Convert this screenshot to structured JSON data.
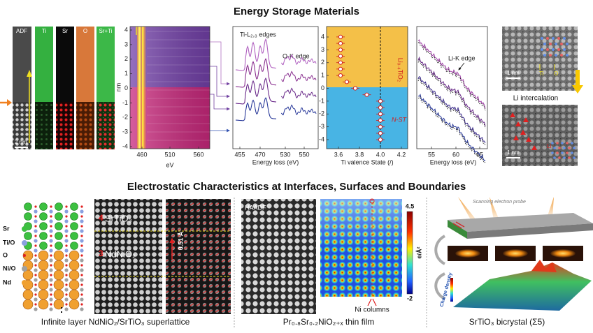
{
  "title": "Energy Storage Materials",
  "panel_a": {
    "labels": [
      "ADF",
      "Ti",
      "Sr",
      "O",
      "Sr+Ti"
    ],
    "scale": "2 nm"
  },
  "panel_b": {
    "y_label": "nm",
    "y_ticks": [
      "4",
      "3",
      "2",
      "1",
      "0",
      "-1",
      "-2",
      "-3",
      "-4"
    ],
    "x_ticks": [
      "460",
      "510",
      "560"
    ],
    "x_label": "eV"
  },
  "panel_c": {
    "labels": [
      "Ti-L₂,₃ edges",
      "O-K edge"
    ],
    "x_ticks": [
      "455",
      "470",
      "530",
      "550"
    ],
    "x_label": "Energy loss (eV)"
  },
  "panel_d": {
    "y_ticks": [
      "4",
      "3",
      "2",
      "1",
      "0",
      "-1",
      "-2",
      "-3",
      "-4"
    ],
    "x_ticks": [
      "3.6",
      "3.8",
      "4.0",
      "4.2"
    ],
    "x_label": "Ti valence State (/)",
    "labels": [
      "Li₀.₄TiO₂",
      "N-ST"
    ]
  },
  "panel_e": {
    "label": "Li-K edge",
    "x_ticks": [
      "55",
      "60",
      "65"
    ],
    "x_label": "Energy loss (eV)"
  },
  "panel_f": {
    "scale_top": "1 nm",
    "atoms": [
      "Ti",
      "O"
    ],
    "arrow_label": "Li intercalation",
    "scale_bottom": "1 nm",
    "li": "Li"
  },
  "subtitle": "Electrostatic Characteristics at Interfaces, Surfaces and Boundaries",
  "superlattice": {
    "legend": [
      "Sr",
      "Ti/O",
      "O",
      "Ni/O",
      "Nd"
    ],
    "layers": [
      {
        "count": "4",
        "name": "SrTiO₃"
      },
      {
        "count": "3",
        "name": "NdNiO₂"
      }
    ],
    "shift": "0.51 Å",
    "caption": "Infinite layer NdNiO₂/SrTiO₃ superlattice"
  },
  "thin_film": {
    "image_label": "HAADF",
    "colorbar_max": "4.5",
    "colorbar_min": "-2",
    "colorbar_unit": "e/Å²",
    "arrow_label": "Ni columns",
    "caption": "Pr₀.₈Sr₀.₂NiO₂₊ₓ thin film"
  },
  "bicrystal": {
    "probe_label": "Scanning electron probe",
    "axis_label": "Charge density",
    "caption": "SrTiO₃ bicrystal (Σ5)"
  }
}
